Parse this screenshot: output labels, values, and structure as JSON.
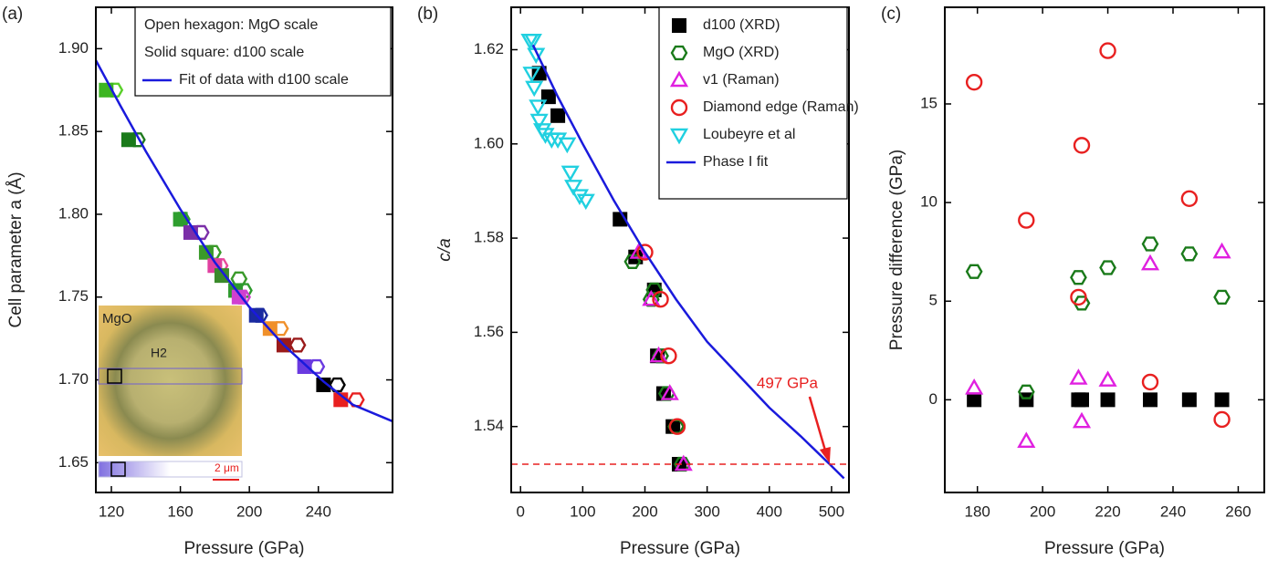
{
  "chart_data": [
    {
      "type": "scatter",
      "panel_label": "(a)",
      "x_label": "Pressure (GPa)",
      "y_label": "Cell parameter a (Å)",
      "xlim": [
        111,
        283
      ],
      "xticks": [
        120,
        160,
        200,
        240
      ],
      "ylim": {
        "0": 1.632,
        "1": 1.925
      },
      "yticks": [
        {
          "value": 1.65,
          "label": "1.65"
        },
        {
          "value": 1.7,
          "label": "1.70"
        },
        {
          "value": 1.75,
          "label": "1.75"
        },
        {
          "value": 1.8,
          "label": "1.80"
        },
        {
          "value": 1.85,
          "label": "1.85"
        },
        {
          "value": 1.9,
          "label": "1.90"
        }
      ],
      "series": [
        {
          "name": "Open hexagon: MgO scale",
          "marker": "hexagon",
          "filled": false,
          "legend_marker": false,
          "x": [
            122,
            135,
            161,
            172,
            179,
            183,
            194,
            197,
            196,
            206,
            218,
            228,
            239,
            251,
            262
          ],
          "values": [
            1.875,
            1.845,
            1.797,
            1.789,
            1.777,
            1.769,
            1.761,
            1.754,
            1.75,
            1.739,
            1.731,
            1.721,
            1.708,
            1.697,
            1.688
          ],
          "colors": [
            "#5ad02a",
            "#1f7a1f",
            "#2e9e2e",
            "#7b2fa8",
            "#3a9a2a",
            "#e84a9a",
            "#3a9a2a",
            "#2e9a2e",
            "#d040d0",
            "#1a2aa0",
            "#f0902a",
            "#9a1a1a",
            "#6a3ae0",
            "#000000",
            "#e82020"
          ]
        },
        {
          "name": "Solid square: d100 scale",
          "marker": "square",
          "filled": true,
          "legend_marker": false,
          "x": [
            117,
            130,
            160,
            166,
            175,
            180,
            184,
            192,
            194,
            204,
            212,
            220,
            232,
            243,
            253
          ],
          "values": [
            1.875,
            1.845,
            1.797,
            1.789,
            1.777,
            1.769,
            1.763,
            1.754,
            1.75,
            1.739,
            1.731,
            1.721,
            1.708,
            1.697,
            1.688
          ],
          "colors": [
            "#3cb521",
            "#1a7a1a",
            "#2e9e2e",
            "#7b2fa8",
            "#3a9a2a",
            "#e040a0",
            "#3a8a2a",
            "#2e9a2e",
            "#d040d0",
            "#1a2aa0",
            "#f0902a",
            "#9a1a1a",
            "#6a3ae0",
            "#000000",
            "#e82020"
          ]
        },
        {
          "name": "Fit of data with d100 scale",
          "marker": "line",
          "color": "#1a1adc",
          "x": [
            111,
            125,
            140,
            160,
            180,
            200,
            220,
            243,
            260,
            283
          ],
          "values": [
            1.893,
            1.866,
            1.838,
            1.803,
            1.771,
            1.744,
            1.721,
            1.699,
            1.685,
            1.675
          ]
        }
      ],
      "inset": {
        "labels": [
          "MgO",
          "H2",
          "2 μm"
        ]
      }
    },
    {
      "type": "scatter",
      "panel_label": "(b)",
      "x_label": "Pressure (GPa)",
      "y_label": "c/a",
      "xlim": [
        -15,
        528
      ],
      "xticks": [
        0,
        100,
        200,
        300,
        400,
        500
      ],
      "ylim": [
        1.526,
        1.629
      ],
      "yticks": [
        {
          "value": 1.54,
          "label": "1.54"
        },
        {
          "value": 1.56,
          "label": "1.56"
        },
        {
          "value": 1.58,
          "label": "1.58"
        },
        {
          "value": 1.6,
          "label": "1.60"
        },
        {
          "value": 1.62,
          "label": "1.62"
        }
      ],
      "series": [
        {
          "name": "d100 (XRD)",
          "marker": "square",
          "filled": true,
          "color": "#000000",
          "x": [
            30,
            45,
            60,
            160,
            185,
            215,
            220,
            230,
            245,
            255
          ],
          "values": [
            1.615,
            1.61,
            1.606,
            1.584,
            1.576,
            1.569,
            1.555,
            1.547,
            1.54,
            1.532
          ]
        },
        {
          "name": "MgO (XRD)",
          "marker": "hexagon",
          "filled": false,
          "color": "#1a7a1a",
          "x": [
            180,
            210,
            215,
            225,
            235,
            250,
            260
          ],
          "values": [
            1.575,
            1.567,
            1.569,
            1.555,
            1.547,
            1.54,
            1.532
          ]
        },
        {
          "name": "v1 (Raman)",
          "marker": "triangle",
          "filled": false,
          "color": "#e020e0",
          "x": [
            190,
            210,
            222,
            240,
            262
          ],
          "values": [
            1.577,
            1.567,
            1.555,
            1.547,
            1.532
          ]
        },
        {
          "name": "Diamond edge (Raman)",
          "marker": "circle",
          "filled": false,
          "color": "#e82020",
          "x": [
            200,
            225,
            238,
            252
          ],
          "values": [
            1.577,
            1.567,
            1.555,
            1.54
          ]
        },
        {
          "name": "Loubeyre et al",
          "marker": "triangle-down",
          "filled": false,
          "color": "#20d0e0",
          "x": [
            15,
            20,
            25,
            18,
            22,
            28,
            30,
            35,
            40,
            50,
            60,
            75,
            80,
            85,
            95,
            105
          ],
          "values": [
            1.622,
            1.622,
            1.619,
            1.615,
            1.612,
            1.608,
            1.605,
            1.603,
            1.602,
            1.601,
            1.601,
            1.6,
            1.594,
            1.591,
            1.589,
            1.588
          ]
        },
        {
          "name": "Phase I fit",
          "marker": "line",
          "color": "#1a1adc",
          "x": [
            20,
            60,
            100,
            150,
            200,
            250,
            300,
            350,
            400,
            450,
            497,
            520
          ],
          "values": [
            1.621,
            1.61,
            1.6,
            1.588,
            1.577,
            1.567,
            1.558,
            1.551,
            1.544,
            1.538,
            1.532,
            1.529
          ]
        },
        {
          "marker": "dashed",
          "color": "#e82020",
          "x": [
            -15,
            528
          ],
          "values": [
            1.532,
            1.532
          ]
        }
      ],
      "annotations": [
        {
          "text": "497 GPa",
          "x": 497,
          "y": 1.532,
          "color": "#e82020"
        }
      ]
    },
    {
      "type": "scatter",
      "panel_label": "(c)",
      "x_label": "Pressure (GPa)",
      "y_label": "Pressure difference (GPa)",
      "xlim": [
        170,
        268
      ],
      "xticks": [
        180,
        200,
        220,
        240,
        260
      ],
      "ylim": [
        -4.7,
        19.9
      ],
      "yticks": [
        0,
        5,
        10,
        15
      ],
      "series": [
        {
          "marker": "square",
          "filled": true,
          "color": "#000000",
          "x": [
            179,
            195,
            211,
            212,
            220,
            233,
            245,
            255
          ],
          "values": [
            0,
            0,
            0,
            0,
            0,
            0,
            0,
            0
          ]
        },
        {
          "marker": "hexagon",
          "filled": false,
          "color": "#1a7a1a",
          "x": [
            179,
            195,
            211,
            212,
            220,
            233,
            245,
            255
          ],
          "values": [
            6.5,
            0.4,
            6.2,
            4.9,
            6.7,
            7.9,
            7.4,
            5.2
          ]
        },
        {
          "marker": "triangle",
          "filled": false,
          "color": "#e020e0",
          "x": [
            179,
            195,
            211,
            212,
            220,
            233,
            255
          ],
          "values": [
            0.6,
            -2.1,
            1.1,
            -1.1,
            1.0,
            6.9,
            7.5
          ]
        },
        {
          "marker": "circle",
          "filled": false,
          "color": "#e82020",
          "x": [
            179,
            195,
            211,
            212,
            220,
            233,
            245,
            255
          ],
          "values": [
            16.1,
            9.1,
            5.2,
            12.9,
            17.7,
            0.9,
            10.2,
            -1.0
          ]
        }
      ]
    }
  ]
}
